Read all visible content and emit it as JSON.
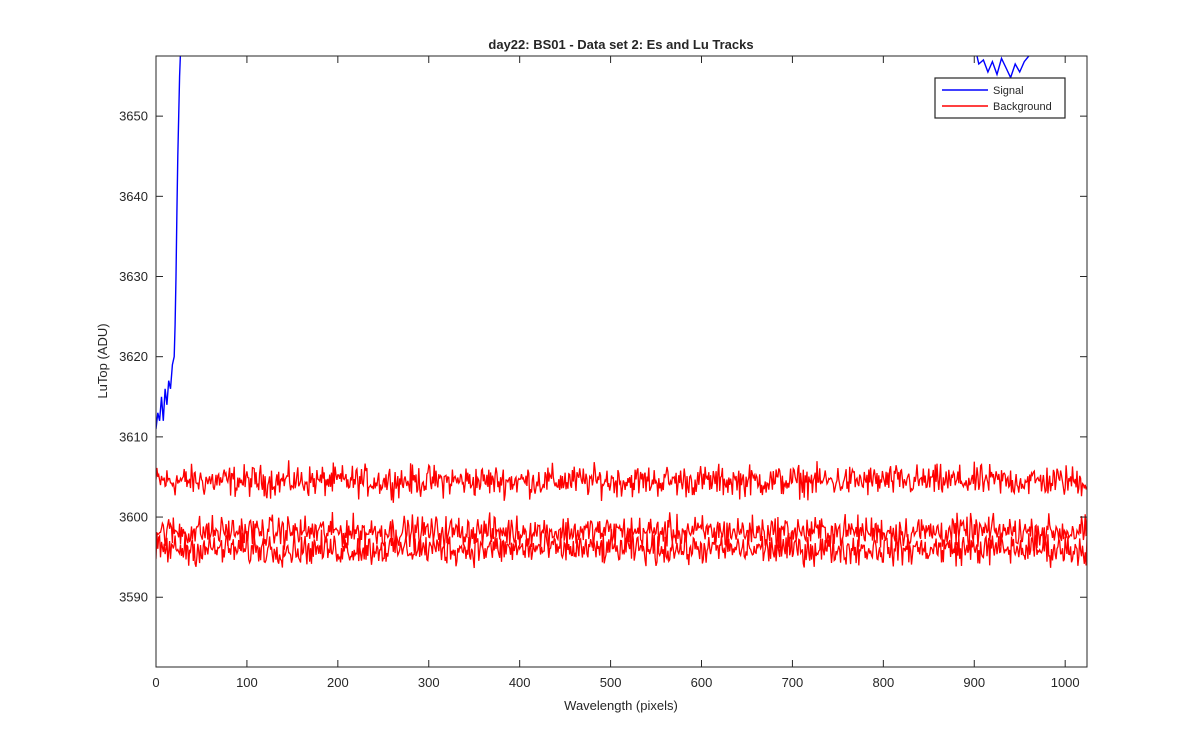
{
  "chart_data": {
    "type": "line",
    "title": "day22: BS01 - Data set 2: Es and Lu Tracks",
    "xlabel": "Wavelength (pixels)",
    "ylabel": "LuTop (ADU)",
    "xlim": [
      0,
      1024
    ],
    "ylim": [
      3581.3,
      3657.5
    ],
    "xticks": [
      0,
      100,
      200,
      300,
      400,
      500,
      600,
      700,
      800,
      900,
      1000
    ],
    "yticks": [
      3590,
      3600,
      3610,
      3620,
      3630,
      3640,
      3650
    ],
    "grid": false,
    "legend": {
      "placement": "top-right",
      "entries": [
        "Signal",
        "Background"
      ]
    },
    "colors": {
      "Signal": "#0000ff",
      "Background": "#ff0000"
    },
    "series": [
      {
        "name": "Signal",
        "color": "#0000ff",
        "segments": [
          {
            "x": [
              0,
              2,
              4,
              6,
              8,
              10,
              12,
              14,
              16,
              18,
              20,
              21,
              22,
              23,
              24,
              25,
              26,
              27
            ],
            "y": [
              3611,
              3613,
              3612,
              3615,
              3612,
              3616,
              3614,
              3617,
              3616,
              3619,
              3620,
              3624,
              3630,
              3638,
              3645,
              3650,
              3655,
              3658
            ]
          },
          {
            "x": [
              902,
              905,
              910,
              915,
              920,
              925,
              930,
              935,
              940,
              945,
              950,
              955,
              960
            ],
            "y": [
              3658,
              3656.5,
              3657,
              3655.5,
              3656.8,
              3655.2,
              3657.2,
              3656,
              3654.8,
              3656.5,
              3655.5,
              3656.8,
              3657.5
            ]
          }
        ]
      },
      {
        "name": "Background",
        "color": "#ff0000",
        "baseline": 3604.5,
        "amplitude": 1.2,
        "x_range": [
          0,
          1024
        ]
      },
      {
        "name": "Background",
        "color": "#ff0000",
        "baseline": 3598.2,
        "amplitude": 1.2,
        "x_range": [
          0,
          1024
        ]
      },
      {
        "name": "Background",
        "color": "#ff0000",
        "baseline": 3596.0,
        "amplitude": 1.2,
        "x_range": [
          0,
          1024
        ]
      }
    ]
  }
}
